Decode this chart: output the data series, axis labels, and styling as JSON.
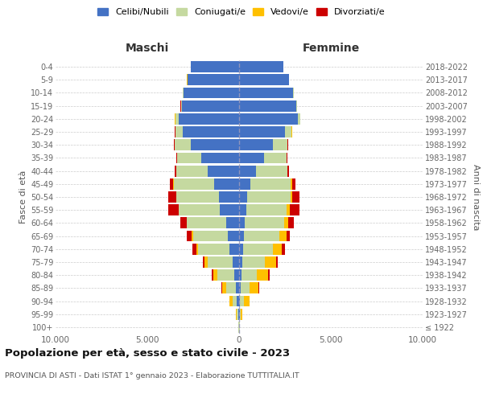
{
  "age_groups": [
    "100+",
    "95-99",
    "90-94",
    "85-89",
    "80-84",
    "75-79",
    "70-74",
    "65-69",
    "60-64",
    "55-59",
    "50-54",
    "45-49",
    "40-44",
    "35-39",
    "30-34",
    "25-29",
    "20-24",
    "15-19",
    "10-14",
    "5-9",
    "0-4"
  ],
  "birth_years": [
    "≤ 1922",
    "1923-1927",
    "1928-1932",
    "1933-1937",
    "1938-1942",
    "1943-1947",
    "1948-1952",
    "1953-1957",
    "1958-1962",
    "1963-1967",
    "1968-1972",
    "1973-1977",
    "1978-1982",
    "1983-1987",
    "1988-1992",
    "1993-1997",
    "1998-2002",
    "2003-2007",
    "2008-2012",
    "2013-2017",
    "2018-2022"
  ],
  "colors": {
    "celibi": "#4472c4",
    "coniugati": "#c5d9a0",
    "vedovi": "#ffc000",
    "divorziati": "#cc0000"
  },
  "maschi_celibi": [
    20,
    55,
    110,
    160,
    260,
    360,
    510,
    610,
    720,
    1060,
    1110,
    1360,
    1720,
    2060,
    2610,
    3060,
    3310,
    3110,
    3010,
    2810,
    2610
  ],
  "maschi_coniugati": [
    30,
    85,
    260,
    560,
    910,
    1360,
    1710,
    1910,
    2110,
    2210,
    2310,
    2210,
    1710,
    1310,
    910,
    410,
    160,
    60,
    40,
    15,
    8
  ],
  "maschi_vedovi": [
    10,
    45,
    135,
    205,
    255,
    155,
    105,
    65,
    35,
    25,
    15,
    8,
    8,
    8,
    8,
    8,
    35,
    8,
    8,
    8,
    8
  ],
  "maschi_divorziati": [
    5,
    12,
    12,
    35,
    65,
    105,
    205,
    285,
    355,
    555,
    405,
    205,
    85,
    55,
    35,
    25,
    12,
    8,
    8,
    8,
    8
  ],
  "femmine_celibi": [
    10,
    35,
    65,
    105,
    135,
    185,
    225,
    275,
    325,
    385,
    455,
    610,
    910,
    1360,
    1860,
    2510,
    3210,
    3110,
    2960,
    2710,
    2410
  ],
  "femmine_coniugati": [
    20,
    65,
    205,
    455,
    810,
    1210,
    1610,
    1910,
    2110,
    2210,
    2360,
    2210,
    1710,
    1210,
    760,
    360,
    110,
    35,
    25,
    12,
    8
  ],
  "femmine_vedovi": [
    20,
    85,
    285,
    505,
    655,
    605,
    505,
    385,
    255,
    185,
    85,
    55,
    25,
    12,
    8,
    8,
    8,
    8,
    8,
    8,
    8
  ],
  "femmine_divorziati": [
    5,
    12,
    12,
    35,
    55,
    85,
    155,
    205,
    305,
    505,
    385,
    205,
    85,
    55,
    35,
    25,
    12,
    8,
    8,
    8,
    8
  ],
  "legend_labels": [
    "Celibi/Nubili",
    "Coniugati/e",
    "Vedovi/e",
    "Divorziati/e"
  ],
  "xlabel_left": "Maschi",
  "xlabel_right": "Femmine",
  "ylabel_left": "Fasce di età",
  "ylabel_right": "Anni di nascita",
  "title": "Popolazione per età, sesso e stato civile - 2023",
  "subtitle": "PROVINCIA DI ASTI - Dati ISTAT 1° gennaio 2023 - Elaborazione TUTTITALIA.IT",
  "xlim": 10000,
  "xtick_labels": [
    "10.000",
    "5.000",
    "0",
    "5.000",
    "10.000"
  ],
  "xtick_vals": [
    -10000,
    -5000,
    0,
    5000,
    10000
  ],
  "background_color": "#ffffff",
  "grid_color": "#cccccc"
}
